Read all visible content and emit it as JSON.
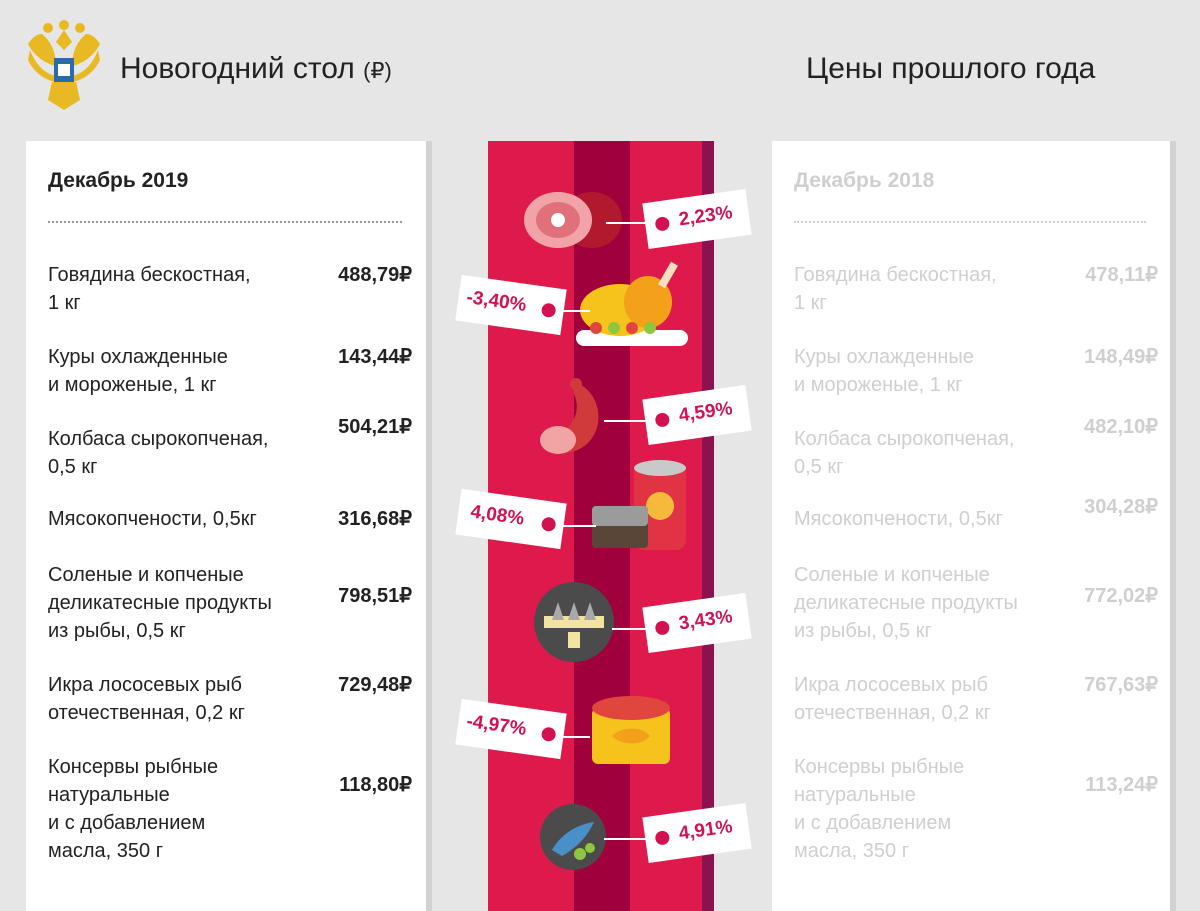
{
  "header": {
    "title": "Новогодний стол",
    "currency": "(₽)",
    "right_title": "Цены прошлого года"
  },
  "current": {
    "month": "Декабрь 2019",
    "items": [
      {
        "label": "Говядина бескостная,\n1 кг",
        "price": "488,79₽"
      },
      {
        "label": "Куры охлажденные\nи мороженые, 1 кг",
        "price": "143,44₽"
      },
      {
        "label": "Колбаса сырокопченая,\n0,5 кг",
        "price": "504,21₽"
      },
      {
        "label": "Мясокопчености, 0,5кг",
        "price": "316,68₽"
      },
      {
        "label": "Соленые и копченые\nделикатесные продукты\nиз рыбы, 0,5 кг",
        "price": "798,51₽"
      },
      {
        "label": "Икра лососевых рыб\nотечественная, 0,2 кг",
        "price": "729,48₽"
      },
      {
        "label": "Консервы рыбные\nнатуральные\nи с добавлением\nмасла, 350 г",
        "price": "118,80₽"
      }
    ]
  },
  "previous": {
    "month": "Декабрь 2018",
    "items": [
      {
        "label": "Говядина бескостная,\n1 кг",
        "price": "478,11₽"
      },
      {
        "label": "Куры охлажденные\nи мороженые, 1 кг",
        "price": "148,49₽"
      },
      {
        "label": "Колбаса сырокопченая,\n0,5 кг",
        "price": "482,10₽"
      },
      {
        "label": "Мясокопчености, 0,5кг",
        "price": "304,28₽"
      },
      {
        "label": "Соленые и копченые\nделикатесные продукты\nиз рыбы, 0,5 кг",
        "price": "772,02₽"
      },
      {
        "label": "Икра лососевых рыб\nотечественная, 0,2 кг",
        "price": "767,63₽"
      },
      {
        "label": "Консервы рыбные\nнатуральные\nи с добавлением\nмасла, 350 г",
        "price": "113,24₽"
      }
    ]
  },
  "changes": [
    "2,23%",
    "-3,40%",
    "4,59%",
    "4,08%",
    "3,43%",
    "-4,97%",
    "4,91%"
  ],
  "icons": [
    "ham-icon",
    "roast-chicken-icon",
    "sausage-icon",
    "canned-meat-icon",
    "fish-platter-icon",
    "caviar-tin-icon",
    "fish-plate-icon"
  ],
  "colors": {
    "accent": "#d31150",
    "stripe_red": "#de1a4c",
    "stripe_dark": "#a0003b"
  }
}
